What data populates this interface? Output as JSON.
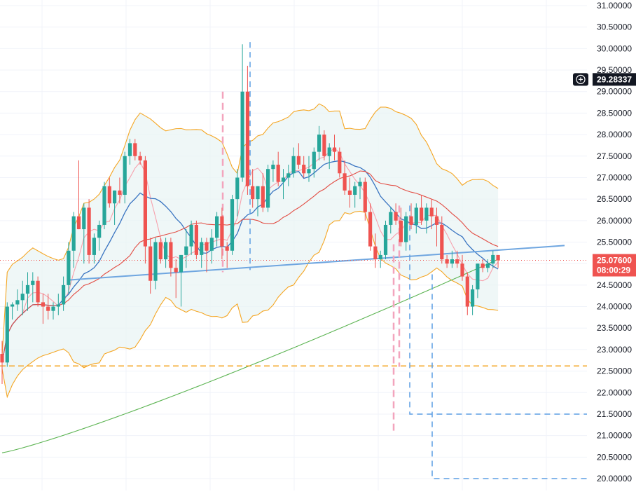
{
  "chart_data": {
    "type": "candlestick",
    "price_axis": {
      "ticks": [
        "31.00000",
        "30.50000",
        "30.00000",
        "29.50000",
        "29.00000",
        "28.50000",
        "28.00000",
        "27.50000",
        "27.00000",
        "26.50000",
        "26.00000",
        "25.50000",
        "25.00000",
        "24.50000",
        "24.00000",
        "23.50000",
        "23.00000",
        "22.50000",
        "22.00000",
        "21.50000",
        "21.00000",
        "20.50000",
        "20.00000"
      ],
      "range": [
        20.0,
        31.0
      ],
      "side": "right"
    },
    "crosshair": {
      "price_label": "29.28337",
      "price": 29.28337,
      "icon": "plus-circle-icon"
    },
    "last_price": {
      "price_label": "25.07600",
      "countdown": "08:00:29",
      "price": 25.076
    },
    "colors": {
      "up": "#26a69a",
      "down": "#ef5350",
      "bb_band": "#f5a623",
      "bb_fill": "#e8f4f4",
      "ma_short": "#f7a1ad",
      "ma_mid": "#3974c1",
      "ma_long": "#e24c43",
      "ma_200": "#5cb452",
      "trendline": "#6fa6e0",
      "horizontal_level": "#f5a623",
      "pink_marker": "#f3a4bd",
      "blue_marker": "#5b9de4"
    },
    "candles": [
      [
        22.9,
        23.2,
        22.2,
        22.7
      ],
      [
        22.7,
        24.1,
        22.6,
        24.0
      ],
      [
        24.0,
        24.1,
        23.7,
        24.05
      ],
      [
        24.05,
        24.4,
        23.9,
        24.15
      ],
      [
        24.15,
        24.6,
        23.8,
        24.3
      ],
      [
        24.3,
        24.8,
        23.9,
        24.5
      ],
      [
        24.5,
        24.8,
        24.1,
        24.6
      ],
      [
        24.6,
        24.7,
        24.0,
        24.1
      ],
      [
        24.1,
        24.3,
        23.6,
        24.0
      ],
      [
        24.0,
        24.3,
        23.7,
        23.9
      ],
      [
        23.9,
        24.1,
        23.7,
        24.0
      ],
      [
        24.0,
        24.3,
        23.8,
        24.05
      ],
      [
        24.05,
        24.7,
        23.9,
        24.5
      ],
      [
        24.5,
        25.5,
        24.3,
        25.3
      ],
      [
        25.3,
        26.2,
        24.9,
        26.1
      ],
      [
        26.1,
        27.4,
        25.8,
        25.8
      ],
      [
        25.8,
        26.4,
        25.0,
        26.3
      ],
      [
        26.3,
        26.5,
        25.0,
        25.2
      ],
      [
        25.2,
        25.7,
        25.0,
        25.6
      ],
      [
        25.6,
        26.0,
        25.3,
        25.9
      ],
      [
        25.9,
        26.9,
        25.8,
        26.8
      ],
      [
        26.8,
        27.0,
        26.3,
        26.4
      ],
      [
        26.4,
        26.7,
        25.9,
        26.7
      ],
      [
        26.7,
        27.0,
        26.4,
        26.6
      ],
      [
        26.6,
        27.6,
        26.4,
        27.5
      ],
      [
        27.5,
        27.9,
        27.3,
        27.8
      ],
      [
        27.8,
        27.9,
        27.4,
        27.5
      ],
      [
        27.5,
        27.6,
        27.3,
        27.4
      ],
      [
        27.4,
        27.5,
        25.0,
        25.4
      ],
      [
        25.4,
        25.6,
        24.3,
        24.6
      ],
      [
        24.6,
        25.6,
        24.4,
        25.5
      ],
      [
        25.5,
        25.6,
        25.0,
        25.1
      ],
      [
        25.1,
        25.6,
        24.9,
        25.5
      ],
      [
        25.5,
        25.6,
        24.7,
        24.9
      ],
      [
        24.9,
        25.1,
        24.2,
        24.8
      ],
      [
        24.8,
        25.2,
        24.0,
        25.2
      ],
      [
        25.2,
        25.8,
        24.9,
        25.4
      ],
      [
        25.4,
        26.0,
        25.2,
        25.9
      ],
      [
        25.9,
        26.0,
        25.1,
        25.2
      ],
      [
        25.2,
        25.6,
        24.9,
        25.5
      ],
      [
        25.5,
        25.6,
        24.8,
        25.3
      ],
      [
        25.3,
        25.8,
        25.0,
        25.6
      ],
      [
        25.6,
        26.2,
        25.4,
        26.1
      ],
      [
        26.1,
        26.3,
        25.1,
        25.4
      ],
      [
        25.4,
        25.5,
        24.9,
        25.3
      ],
      [
        25.3,
        26.6,
        25.2,
        26.5
      ],
      [
        26.5,
        27.2,
        26.1,
        27.0
      ],
      [
        27.0,
        30.1,
        26.9,
        29.0
      ],
      [
        29.0,
        29.6,
        26.6,
        26.8
      ],
      [
        26.8,
        27.2,
        26.3,
        26.5
      ],
      [
        26.5,
        26.8,
        26.1,
        26.8
      ],
      [
        26.8,
        27.1,
        26.2,
        26.3
      ],
      [
        26.3,
        27.3,
        26.2,
        27.2
      ],
      [
        27.2,
        27.4,
        26.9,
        27.3
      ],
      [
        27.3,
        27.6,
        26.8,
        26.9
      ],
      [
        26.9,
        27.2,
        26.5,
        27.0
      ],
      [
        27.0,
        27.3,
        26.8,
        27.1
      ],
      [
        27.1,
        27.7,
        27.0,
        27.5
      ],
      [
        27.5,
        27.8,
        27.2,
        27.3
      ],
      [
        27.3,
        27.5,
        27.0,
        27.1
      ],
      [
        27.1,
        27.5,
        26.9,
        27.2
      ],
      [
        27.2,
        27.7,
        27.0,
        27.6
      ],
      [
        27.6,
        28.2,
        27.4,
        28.0
      ],
      [
        28.0,
        28.1,
        27.4,
        27.5
      ],
      [
        27.5,
        27.8,
        27.2,
        27.7
      ],
      [
        27.7,
        28.0,
        27.4,
        27.6
      ],
      [
        27.6,
        27.7,
        27.0,
        27.1
      ],
      [
        27.1,
        27.4,
        26.6,
        26.7
      ],
      [
        26.7,
        27.0,
        26.3,
        26.6
      ],
      [
        26.6,
        26.9,
        26.3,
        26.8
      ],
      [
        26.8,
        27.0,
        26.5,
        26.9
      ],
      [
        26.9,
        27.0,
        26.0,
        26.2
      ],
      [
        26.2,
        26.4,
        25.3,
        25.4
      ],
      [
        25.4,
        25.7,
        24.9,
        25.1
      ],
      [
        25.1,
        25.3,
        24.9,
        25.2
      ],
      [
        25.2,
        26.0,
        25.1,
        25.9
      ],
      [
        25.9,
        26.3,
        25.7,
        26.2
      ],
      [
        26.2,
        26.4,
        25.9,
        26.0
      ],
      [
        26.0,
        26.3,
        25.4,
        25.5
      ],
      [
        25.5,
        26.2,
        25.3,
        26.1
      ],
      [
        26.1,
        26.4,
        25.8,
        25.9
      ],
      [
        25.9,
        26.4,
        25.7,
        26.3
      ],
      [
        26.3,
        26.6,
        25.9,
        26.0
      ],
      [
        26.0,
        26.4,
        25.7,
        26.3
      ],
      [
        26.3,
        26.5,
        25.8,
        26.1
      ],
      [
        26.1,
        26.3,
        25.4,
        25.9
      ],
      [
        25.9,
        26.1,
        25.0,
        25.1
      ],
      [
        25.1,
        25.2,
        24.9,
        25.0
      ],
      [
        25.0,
        25.3,
        24.9,
        25.1
      ],
      [
        25.1,
        25.3,
        24.9,
        25.0
      ],
      [
        25.0,
        25.2,
        24.6,
        24.7
      ],
      [
        24.7,
        24.8,
        23.8,
        24.0
      ],
      [
        24.0,
        24.5,
        23.8,
        24.4
      ],
      [
        24.4,
        25.0,
        24.2,
        25.0
      ],
      [
        25.0,
        25.1,
        24.8,
        24.9
      ],
      [
        24.9,
        25.1,
        24.8,
        25.0
      ],
      [
        25.0,
        25.3,
        24.9,
        25.2
      ],
      [
        25.2,
        25.2,
        24.9,
        25.076
      ]
    ]
  }
}
